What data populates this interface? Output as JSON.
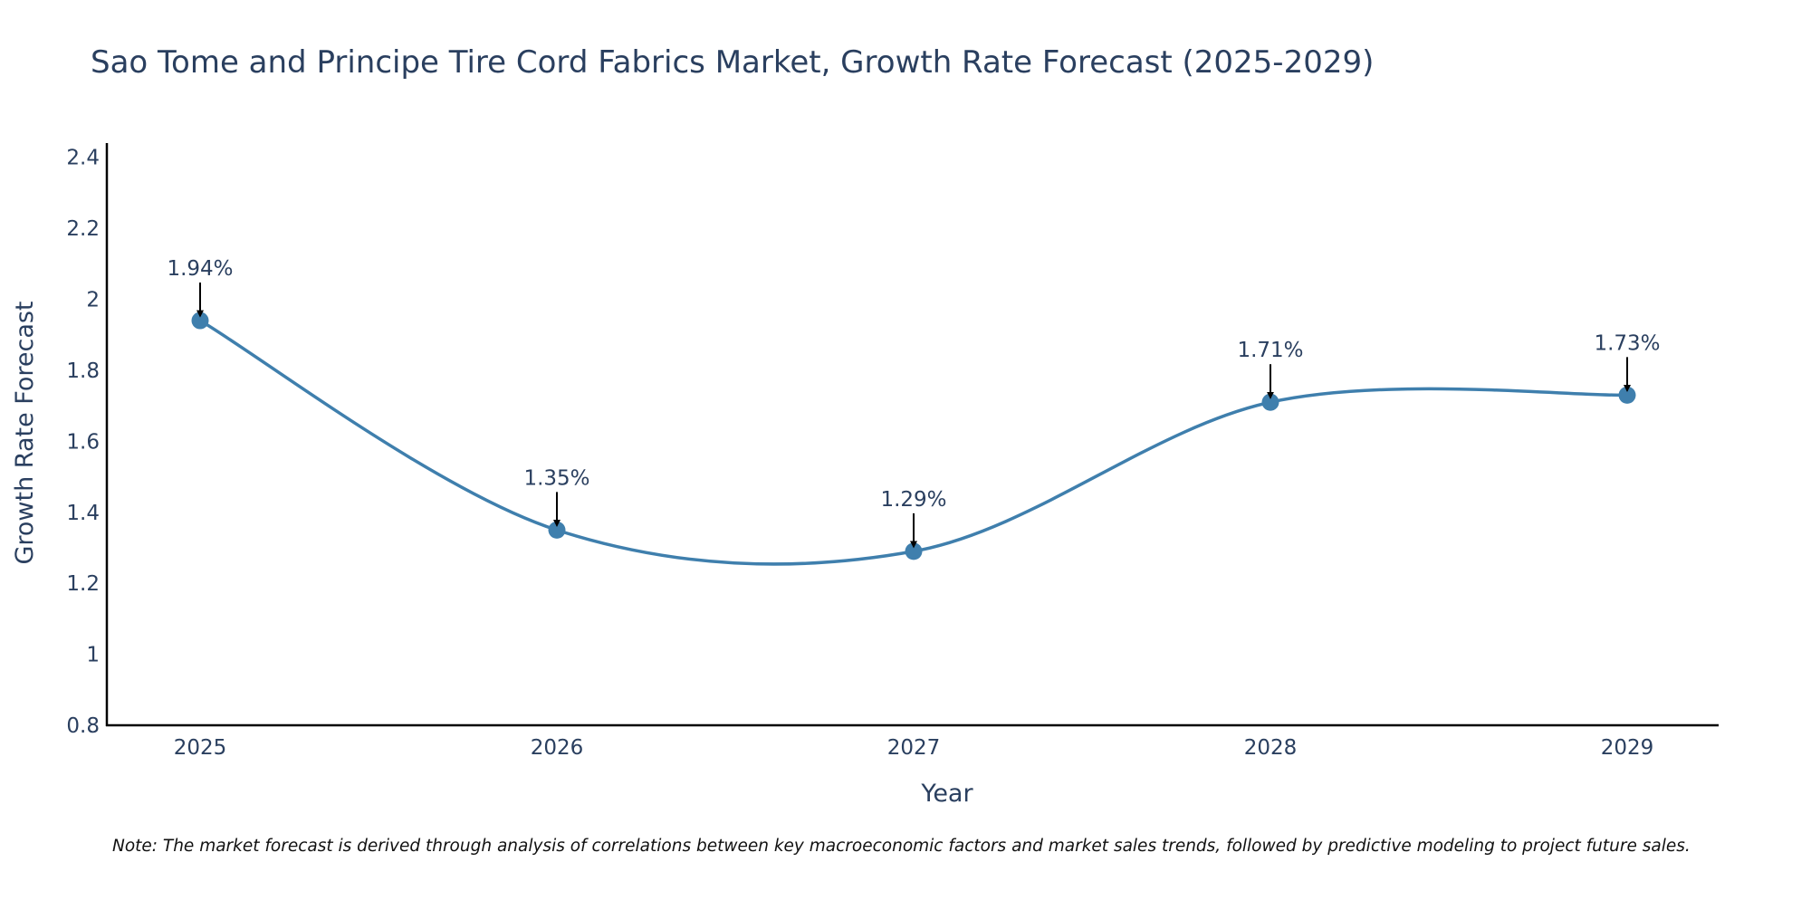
{
  "chart_data": {
    "type": "line",
    "title": "Sao Tome and Principe Tire Cord Fabrics Market, Growth Rate Forecast (2025-2029)",
    "xlabel": "Year",
    "ylabel": "Growth Rate Forecast",
    "categories": [
      "2025",
      "2026",
      "2027",
      "2028",
      "2029"
    ],
    "series": [
      {
        "name": "Growth Rate Forecast",
        "values": [
          1.94,
          1.35,
          1.29,
          1.71,
          1.73
        ],
        "labels": [
          "1.94%",
          "1.35%",
          "1.29%",
          "1.71%",
          "1.73%"
        ],
        "color": "#3f7fad"
      }
    ],
    "ylim": [
      0.8,
      2.44
    ],
    "yticks": [
      0.8,
      1,
      1.2,
      1.4,
      1.6,
      1.8,
      2,
      2.2,
      2.4
    ],
    "ytick_labels": [
      "0.8",
      "1",
      "1.2",
      "1.4",
      "1.6",
      "1.8",
      "2",
      "2.2",
      "2.4"
    ],
    "grid": false,
    "line_shape": "spline",
    "annotation_arrows": true,
    "axis_color": "#000000",
    "note": "Note: The market forecast is derived through analysis of correlations between key macroeconomic factors and market sales trends, followed by predictive modeling to project future sales."
  }
}
